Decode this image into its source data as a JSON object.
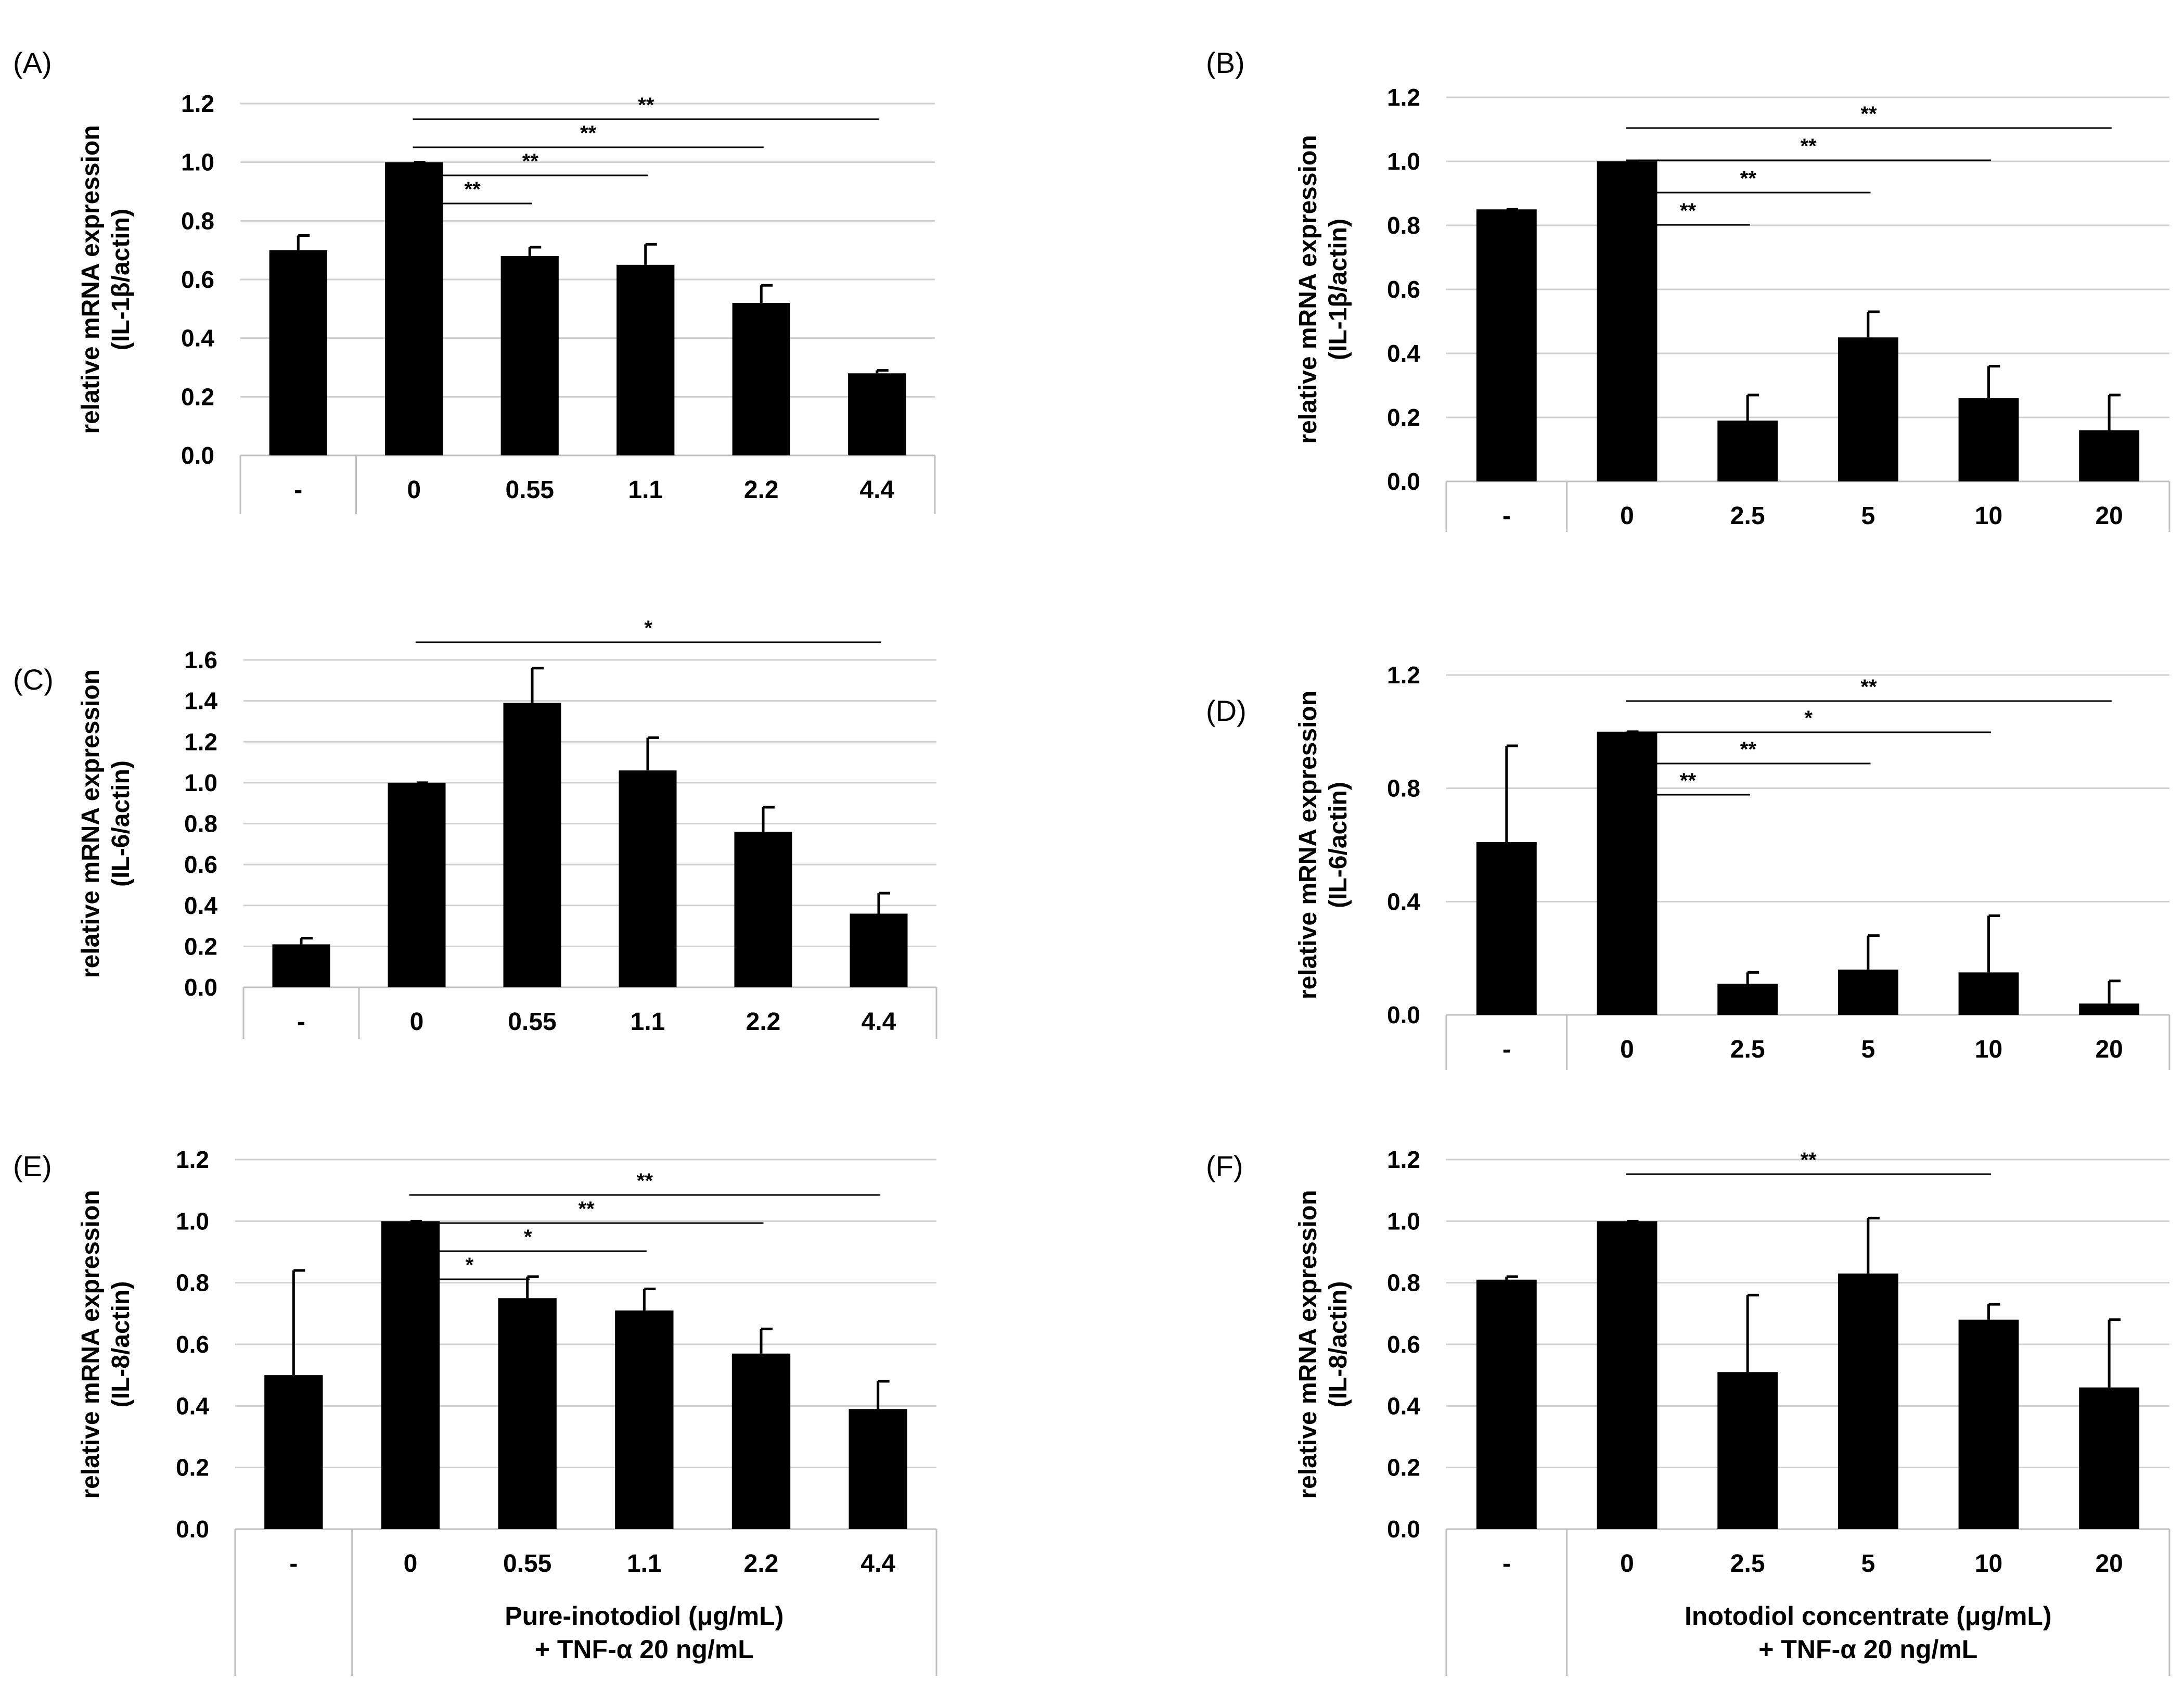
{
  "chart_data": [
    {
      "panel": "(A)",
      "type": "bar",
      "categories": [
        "-",
        "0",
        "0.55",
        "1.1",
        "2.2",
        "4.4"
      ],
      "values": [
        0.7,
        1.0,
        0.68,
        0.65,
        0.52,
        0.28
      ],
      "errors": [
        0.05,
        0.005,
        0.03,
        0.07,
        0.06,
        0.01
      ],
      "yticks": [
        "0.0",
        "0.2",
        "0.4",
        "0.6",
        "0.8",
        "1.0",
        "1.2"
      ],
      "ylim": [
        0,
        1.2
      ],
      "ylabel": [
        "relative mRNA expression",
        "(IL-1β/actin)"
      ],
      "xtitle": [],
      "grid": true,
      "significance": [
        {
          "from": 1,
          "to": 2,
          "label": "**"
        },
        {
          "from": 1,
          "to": 3,
          "label": "**"
        },
        {
          "from": 1,
          "to": 4,
          "label": "**"
        },
        {
          "from": 1,
          "to": 5,
          "label": "**"
        }
      ]
    },
    {
      "panel": "(B)",
      "type": "bar",
      "categories": [
        "-",
        "0",
        "2.5",
        "5",
        "10",
        "20"
      ],
      "values": [
        0.85,
        1.0,
        0.19,
        0.45,
        0.26,
        0.16
      ],
      "errors": [
        0.005,
        0.005,
        0.08,
        0.08,
        0.1,
        0.11
      ],
      "yticks": [
        "0.0",
        "0.2",
        "0.4",
        "0.6",
        "0.8",
        "1.0",
        "1.2"
      ],
      "ylim": [
        0,
        1.2
      ],
      "ylabel": [
        "relative mRNA expression",
        "(IL-1β/actin)"
      ],
      "xtitle": [],
      "grid": true,
      "significance": [
        {
          "from": 1,
          "to": 2,
          "label": "**"
        },
        {
          "from": 1,
          "to": 3,
          "label": "**"
        },
        {
          "from": 1,
          "to": 4,
          "label": "**"
        },
        {
          "from": 1,
          "to": 5,
          "label": "**"
        }
      ]
    },
    {
      "panel": "(C)",
      "type": "bar",
      "categories": [
        "-",
        "0",
        "0.55",
        "1.1",
        "2.2",
        "4.4"
      ],
      "values": [
        0.21,
        1.0,
        1.39,
        1.06,
        0.76,
        0.36
      ],
      "errors": [
        0.03,
        0.005,
        0.17,
        0.16,
        0.12,
        0.1
      ],
      "yticks": [
        "0.0",
        "0.2",
        "0.4",
        "0.6",
        "0.8",
        "1.0",
        "1.2",
        "1.4",
        "1.6"
      ],
      "ylim": [
        0,
        1.6
      ],
      "ylabel": [
        "relative mRNA expression",
        "(IL-6/actin)"
      ],
      "xtitle": [],
      "grid": true,
      "significance": [
        {
          "from": 1,
          "to": 5,
          "label": "*"
        }
      ]
    },
    {
      "panel": "(D)",
      "type": "bar",
      "categories": [
        "-",
        "0",
        "2.5",
        "5",
        "10",
        "20"
      ],
      "values": [
        0.61,
        1.0,
        0.11,
        0.16,
        0.15,
        0.04
      ],
      "errors": [
        0.34,
        0.005,
        0.04,
        0.12,
        0.2,
        0.08
      ],
      "yticks": [
        "0.0",
        "0.4",
        "0.8",
        "1.2"
      ],
      "ylim": [
        0,
        1.2
      ],
      "ylabel": [
        "relative mRNA expression",
        "(IL-6/actin)"
      ],
      "xtitle": [],
      "grid": true,
      "significance": [
        {
          "from": 1,
          "to": 2,
          "label": "**"
        },
        {
          "from": 1,
          "to": 3,
          "label": "**"
        },
        {
          "from": 1,
          "to": 4,
          "label": "*"
        },
        {
          "from": 1,
          "to": 5,
          "label": "**"
        }
      ]
    },
    {
      "panel": "(E)",
      "type": "bar",
      "categories": [
        "-",
        "0",
        "0.55",
        "1.1",
        "2.2",
        "4.4"
      ],
      "values": [
        0.5,
        1.0,
        0.75,
        0.71,
        0.57,
        0.39
      ],
      "errors": [
        0.34,
        0.005,
        0.07,
        0.07,
        0.08,
        0.09
      ],
      "yticks": [
        "0.0",
        "0.2",
        "0.4",
        "0.6",
        "0.8",
        "1.0",
        "1.2"
      ],
      "ylim": [
        0,
        1.2
      ],
      "ylabel": [
        "relative mRNA expression",
        "(IL-8/actin)"
      ],
      "xtitle": [
        "Pure-inotodiol (μg/mL)",
        "+ TNF-α 20 ng/mL"
      ],
      "grid": true,
      "significance": [
        {
          "from": 1,
          "to": 2,
          "label": "*"
        },
        {
          "from": 1,
          "to": 3,
          "label": "*"
        },
        {
          "from": 1,
          "to": 4,
          "label": "**"
        },
        {
          "from": 1,
          "to": 5,
          "label": "**"
        }
      ]
    },
    {
      "panel": "(F)",
      "type": "bar",
      "categories": [
        "-",
        "0",
        "2.5",
        "5",
        "10",
        "20"
      ],
      "values": [
        0.81,
        1.0,
        0.51,
        0.83,
        0.68,
        0.46
      ],
      "errors": [
        0.01,
        0.005,
        0.25,
        0.18,
        0.05,
        0.22
      ],
      "yticks": [
        "0.0",
        "0.2",
        "0.4",
        "0.6",
        "0.8",
        "1.0",
        "1.2"
      ],
      "ylim": [
        0,
        1.2
      ],
      "ylabel": [
        "relative mRNA expression",
        "(IL-8/actin)"
      ],
      "xtitle": [
        "Inotodiol concentrate (μg/mL)",
        "+ TNF-α 20 ng/mL"
      ],
      "grid": true,
      "significance": [
        {
          "from": 1,
          "to": 4,
          "label": "**"
        }
      ]
    }
  ],
  "colors": {
    "bar": "#000000",
    "grid": "#d0d0d0",
    "axis": "#bfbfbf"
  }
}
